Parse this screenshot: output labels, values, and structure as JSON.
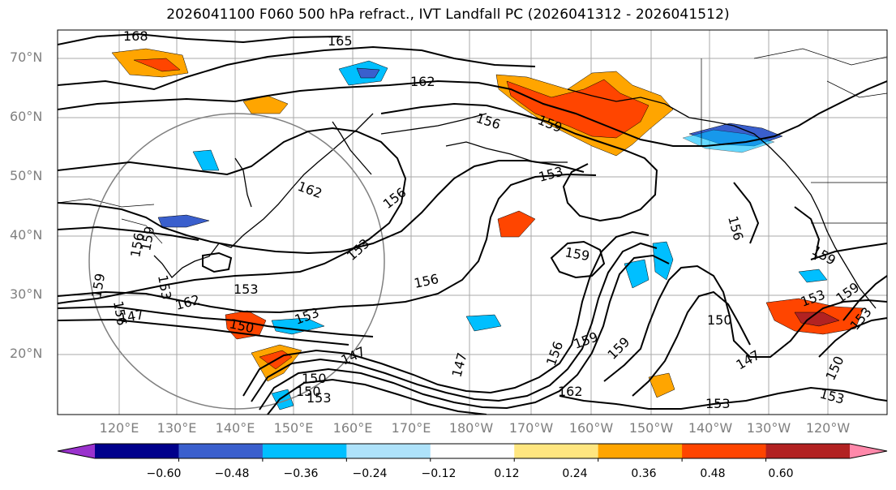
{
  "title": "2026041100 F060 500 hPa refract., IVT Landfall PC (2026041312 - 2026041512)",
  "lat_labels": [
    "70°N",
    "60°N",
    "50°N",
    "40°N",
    "30°N",
    "20°N"
  ],
  "lon_labels": [
    "120°E",
    "130°E",
    "140°E",
    "150°E",
    "160°E",
    "170°E",
    "180°W",
    "170°W",
    "160°W",
    "150°W",
    "140°W",
    "130°W",
    "120°W"
  ],
  "contour_labels": [
    "168",
    "165",
    "162",
    "162",
    "156",
    "159",
    "153",
    "156",
    "153",
    "156",
    "159",
    "153",
    "150",
    "147",
    "147",
    "150",
    "153",
    "156",
    "162",
    "159",
    "150",
    "147",
    "153",
    "153",
    "150",
    "153",
    "156",
    "159",
    "159",
    "153",
    "156",
    "159",
    "159",
    "156",
    "153",
    "147",
    "162",
    "150",
    "153",
    "159"
  ],
  "colorbar": {
    "ticks": [
      "−0.60",
      "−0.48",
      "−0.36",
      "−0.24",
      "−0.12",
      "0.12",
      "0.24",
      "0.36",
      "0.48",
      "0.60"
    ],
    "colors": [
      "#9a32cd",
      "#00008b",
      "#3a5fcd",
      "#00bfff",
      "#aee2fa",
      "#ffffff",
      "#ffe680",
      "#ffa500",
      "#ff4500",
      "#b22222",
      "#ff88aa"
    ]
  }
}
